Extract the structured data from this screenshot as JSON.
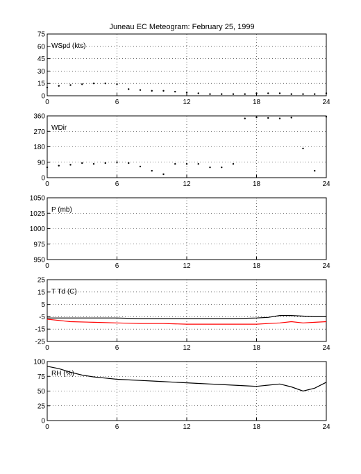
{
  "figure": {
    "title": "Juneau EC Meteogram:  February 25, 1999"
  },
  "chart_data": [
    {
      "id": "wspd",
      "type": "scatter",
      "label": "WSpd (kts)",
      "xlim": [
        0,
        24
      ],
      "ylim": [
        0,
        75
      ],
      "xticks": [
        0,
        6,
        12,
        18,
        24
      ],
      "yticks": [
        0,
        15,
        30,
        45,
        60,
        75
      ],
      "grid": true,
      "series": [
        {
          "color": "#000000",
          "x": [
            0,
            1,
            2,
            3,
            4,
            5,
            6,
            7,
            8,
            9,
            10,
            11,
            12,
            13,
            14,
            15,
            16,
            17,
            18,
            19,
            20,
            21,
            22,
            23,
            24
          ],
          "y": [
            10,
            12,
            13,
            14,
            15,
            15,
            14,
            8,
            7,
            6,
            6,
            5,
            4,
            3,
            2,
            2,
            2,
            2,
            3,
            3,
            3,
            2,
            2,
            2,
            3
          ]
        }
      ]
    },
    {
      "id": "wdir",
      "type": "scatter",
      "label": "WDir",
      "xlim": [
        0,
        24
      ],
      "ylim": [
        0,
        360
      ],
      "xticks": [
        0,
        6,
        12,
        18,
        24
      ],
      "yticks": [
        0,
        90,
        180,
        270,
        360
      ],
      "grid": true,
      "series": [
        {
          "color": "#000000",
          "x": [
            0,
            1,
            2,
            3,
            4,
            5,
            6,
            7,
            8,
            9,
            10,
            11,
            12,
            13,
            14,
            15,
            16,
            17,
            18,
            19,
            20,
            21,
            22,
            23,
            24
          ],
          "y": [
            60,
            70,
            75,
            85,
            80,
            85,
            90,
            85,
            65,
            40,
            20,
            80,
            80,
            80,
            60,
            60,
            80,
            345,
            352,
            348,
            345,
            350,
            170,
            40,
            355
          ]
        }
      ]
    },
    {
      "id": "pres",
      "type": "line",
      "label": "P (mb)",
      "xlim": [
        0,
        24
      ],
      "ylim": [
        950,
        1050
      ],
      "xticks": [
        0,
        6,
        12,
        18,
        24
      ],
      "yticks": [
        950,
        975,
        1000,
        1025,
        1050
      ],
      "grid": true,
      "series": []
    },
    {
      "id": "ttd",
      "type": "line",
      "label": "T Td (C)",
      "xlim": [
        0,
        24
      ],
      "ylim": [
        -25,
        25
      ],
      "xticks": [
        0,
        6,
        12,
        18,
        24
      ],
      "yticks": [
        -25,
        -15,
        -5,
        5,
        15,
        25
      ],
      "grid": true,
      "series": [
        {
          "color": "#000000",
          "x": [
            0,
            2,
            4,
            6,
            8,
            10,
            12,
            14,
            16,
            18,
            19,
            20,
            21,
            22,
            23,
            24
          ],
          "y": [
            -6,
            -6,
            -6,
            -6,
            -6.5,
            -6.5,
            -6.5,
            -6.5,
            -6.5,
            -6,
            -5.5,
            -4,
            -4,
            -4.5,
            -5,
            -5
          ]
        },
        {
          "color": "#ff0000",
          "x": [
            0,
            1,
            2,
            4,
            6,
            8,
            10,
            12,
            14,
            16,
            18,
            19,
            20,
            21,
            22,
            23,
            24
          ],
          "y": [
            -7,
            -8,
            -9,
            -9.5,
            -10,
            -10.5,
            -10.5,
            -11,
            -11,
            -11,
            -11,
            -10.5,
            -10,
            -9,
            -10,
            -9.5,
            -9
          ]
        }
      ]
    },
    {
      "id": "rh",
      "type": "line",
      "label": "RH (%)",
      "xlim": [
        0,
        24
      ],
      "ylim": [
        0,
        100
      ],
      "xticks": [
        0,
        6,
        12,
        18,
        24
      ],
      "yticks": [
        0,
        25,
        50,
        75,
        100
      ],
      "grid": true,
      "series": [
        {
          "color": "#000000",
          "x": [
            0,
            1,
            2,
            3,
            4,
            5,
            6,
            7,
            8,
            9,
            10,
            11,
            12,
            13,
            14,
            15,
            16,
            17,
            18,
            19,
            20,
            21,
            22,
            23,
            24
          ],
          "y": [
            92,
            88,
            82,
            77,
            74,
            72,
            70,
            69,
            68,
            67,
            66,
            65,
            64,
            63,
            62,
            61,
            60,
            59,
            58,
            60,
            62,
            57,
            50,
            55,
            65
          ]
        }
      ]
    }
  ]
}
